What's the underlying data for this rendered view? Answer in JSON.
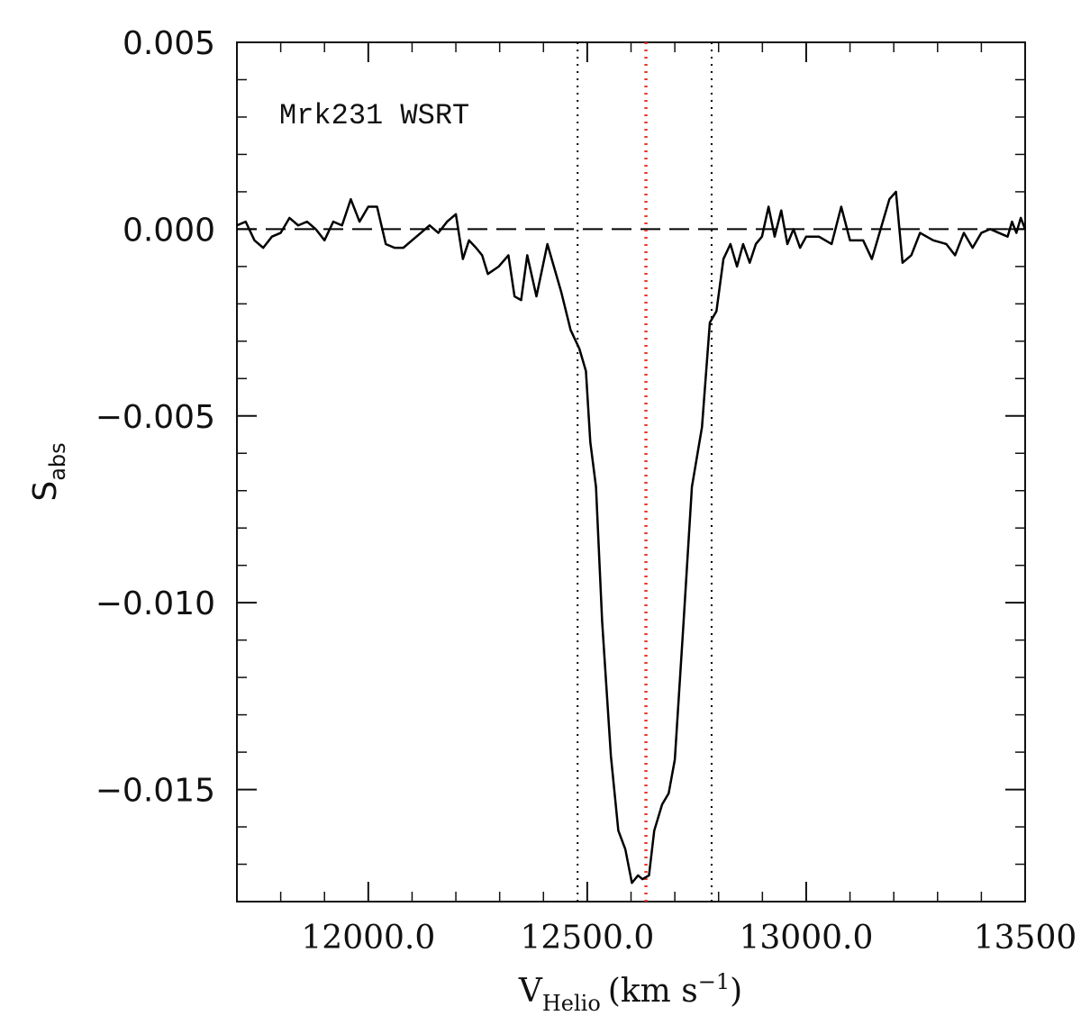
{
  "chart_data": {
    "type": "line",
    "annotation": "Mrk231 WSRT",
    "ylabel": {
      "main": "S",
      "sub": "abs"
    },
    "xlabel": {
      "main": "V",
      "sub": "Helio",
      "unit": "(km  s",
      "sup": "−1",
      "close": ")"
    },
    "xlim": [
      11700,
      13500
    ],
    "ylim": [
      -0.018,
      0.005
    ],
    "xticks": [
      {
        "value": 12000,
        "label": "12000.0"
      },
      {
        "value": 12500,
        "label": "12500.0"
      },
      {
        "value": 13000,
        "label": "13000.0"
      },
      13500
    ],
    "yticks": [
      0.005,
      {
        "value": 0,
        "label": "0.000"
      },
      {
        "value": -0.005,
        "label": "−0.005"
      },
      {
        "value": -0.01,
        "label": "−0.010"
      },
      {
        "value": -0.015,
        "label": "−0.015"
      }
    ],
    "xminorticks": [
      11800,
      11900,
      12100,
      12200,
      12300,
      12400,
      12600,
      12700,
      12800,
      12900,
      13100,
      13200,
      13300,
      13400
    ],
    "yminorticks": [
      0.004,
      0.003,
      0.002,
      0.001,
      -0.001,
      -0.002,
      -0.003,
      -0.004,
      -0.006,
      -0.007,
      -0.008,
      -0.009,
      -0.011,
      -0.012,
      -0.013,
      -0.014,
      -0.016,
      -0.017
    ],
    "hlines": [
      {
        "y": 0,
        "color": "#000000",
        "style": "dashed"
      }
    ],
    "vlines": [
      {
        "x": 12478,
        "color": "#000000",
        "style": "dotted"
      },
      {
        "x": 12634,
        "color": "#e8392a",
        "style": "dotted"
      },
      {
        "x": 12784,
        "color": "#000000",
        "style": "dotted"
      }
    ],
    "series": [
      {
        "name": "Mrk231 WSRT",
        "color": "#000000",
        "x": [
          11700,
          11720,
          11740,
          11760,
          11780,
          11800,
          11820,
          11840,
          11860,
          11880,
          11900,
          11920,
          11940,
          11960,
          11980,
          12000,
          12020,
          12040,
          12060,
          12080,
          12100,
          12120,
          12140,
          12160,
          12180,
          12200,
          12216,
          12230,
          12246,
          12260,
          12273,
          12298,
          12320,
          12334,
          12349,
          12363,
          12384,
          12409,
          12441,
          12462,
          12482,
          12497,
          12507,
          12520,
          12534,
          12554,
          12571,
          12587,
          12602,
          12616,
          12626,
          12641,
          12653,
          12671,
          12686,
          12700,
          12719,
          12739,
          12762,
          12780,
          12795,
          12811,
          12827,
          12842,
          12856,
          12871,
          12885,
          12899,
          12914,
          12928,
          12943,
          12957,
          12971,
          12986,
          13000,
          13029,
          13058,
          13080,
          13100,
          13130,
          13150,
          13170,
          13190,
          13205,
          13220,
          13240,
          13260,
          13290,
          13320,
          13340,
          13360,
          13380,
          13400,
          13420,
          13440,
          13460,
          13470,
          13480,
          13490,
          13500
        ],
        "values": [
          0.0001,
          0.0002,
          -0.0003,
          -0.0005,
          -0.0002,
          -0.0001,
          0.0003,
          0.0001,
          0.0002,
          0.0,
          -0.0003,
          0.0002,
          0.0001,
          0.0008,
          0.0002,
          0.0006,
          0.0006,
          -0.0004,
          -0.0005,
          -0.0005,
          -0.0003,
          -0.0001,
          0.0001,
          -0.0001,
          0.0002,
          0.0004,
          -0.0008,
          -0.0003,
          -0.0005,
          -0.0007,
          -0.0012,
          -0.001,
          -0.0007,
          -0.0018,
          -0.0019,
          -0.0007,
          -0.0018,
          -0.0004,
          -0.0017,
          -0.0027,
          -0.0032,
          -0.0038,
          -0.0057,
          -0.0069,
          -0.0105,
          -0.0141,
          -0.0161,
          -0.0166,
          -0.0175,
          -0.0173,
          -0.0174,
          -0.0173,
          -0.0161,
          -0.0154,
          -0.0151,
          -0.0142,
          -0.0107,
          -0.0069,
          -0.0053,
          -0.0025,
          -0.0022,
          -0.0008,
          -0.0004,
          -0.001,
          -0.0004,
          -0.0009,
          -0.0004,
          -0.0002,
          0.0006,
          -0.0002,
          0.0005,
          -0.0004,
          0.0,
          -0.0005,
          -0.0002,
          -0.0002,
          -0.0004,
          0.0006,
          -0.0003,
          -0.0003,
          -0.0008,
          0.0,
          0.0008,
          0.001,
          -0.0009,
          -0.0007,
          -0.0001,
          -0.0003,
          -0.0004,
          -0.0007,
          -0.0001,
          -0.0005,
          -0.0001,
          0.0,
          -0.0001,
          -0.0002,
          0.0002,
          -0.0001,
          0.0003,
          0.0
        ]
      }
    ]
  }
}
